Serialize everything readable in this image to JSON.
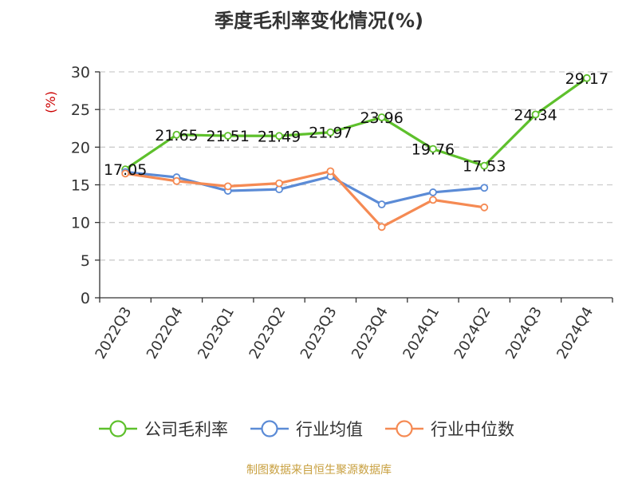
{
  "source_note": "制图数据来自恒生聚源数据库",
  "colors": {
    "gross_margin": "#5ec02c",
    "industry_mean": "#5b8bd6",
    "industry_median": "#f58a53",
    "grid": "#cccccc",
    "axis": "#333333",
    "unit": "#cc0000"
  },
  "chart_data": {
    "type": "line",
    "title": "季度毛利率变化情况(%)",
    "ylabel": "(%)",
    "xlabel": "",
    "ylim": [
      0,
      30
    ],
    "yticks": [
      0,
      5,
      10,
      15,
      20,
      25,
      30
    ],
    "grid": true,
    "legend_position": "bottom",
    "categories": [
      "2022Q3",
      "2022Q4",
      "2023Q1",
      "2023Q2",
      "2023Q3",
      "2023Q4",
      "2024Q1",
      "2024Q2",
      "2024Q3",
      "2024Q4"
    ],
    "series": [
      {
        "name": "公司毛利率",
        "color": "#5ec02c",
        "values": [
          17.05,
          21.65,
          21.51,
          21.49,
          21.97,
          23.96,
          19.76,
          17.53,
          24.34,
          29.17
        ],
        "labels": [
          "17.05",
          "21.65",
          "21.51",
          "21.49",
          "21.97",
          "23.96",
          "19.76",
          "17.53",
          "24.34",
          "29.17"
        ]
      },
      {
        "name": "行业均值",
        "color": "#5b8bd6",
        "values": [
          16.7,
          16.0,
          14.2,
          14.4,
          16.1,
          12.4,
          14.0,
          14.6,
          null,
          null
        ]
      },
      {
        "name": "行业中位数",
        "color": "#f58a53",
        "values": [
          16.5,
          15.5,
          14.8,
          15.2,
          16.8,
          9.4,
          13.0,
          12.0,
          null,
          null
        ]
      }
    ]
  }
}
